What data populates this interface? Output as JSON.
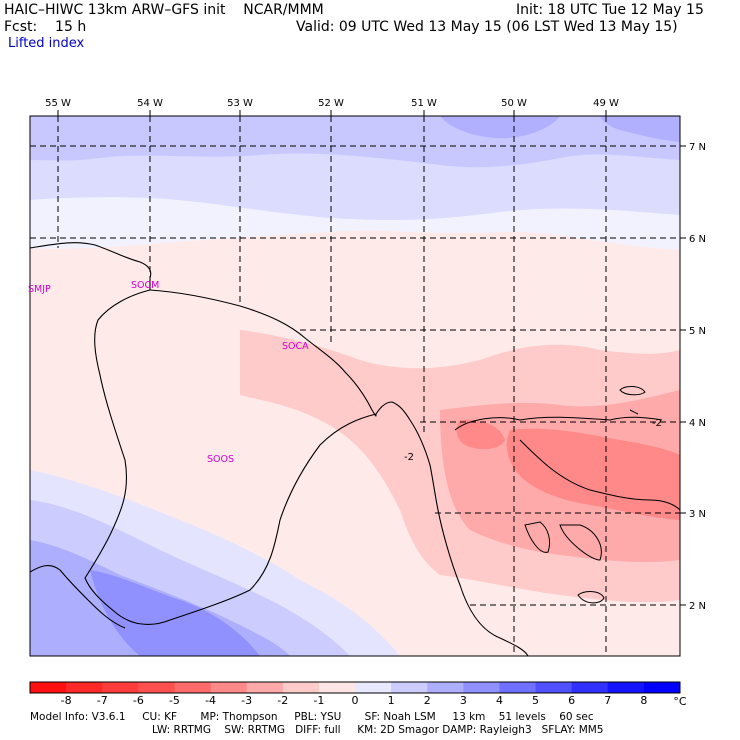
{
  "header": {
    "line1_left": "HAIC–HIWC 13km ARW–GFS init    NCAR/MMM",
    "line1_right": "Init: 18 UTC Tue 12 May 15",
    "line2_left": "Fcst:    15 h",
    "line2_right": "Valid: 09 UTC Wed 13 May 15 (06 LST Wed 13 May 15)",
    "field_name": "Lifted index"
  },
  "map": {
    "lon_labels": [
      "55 W",
      "54 W",
      "53 W",
      "52 W",
      "51 W",
      "50 W",
      "49 W"
    ],
    "lat_labels": [
      "7 N",
      "6 N",
      "5 N",
      "4 N",
      "3 N",
      "2 N"
    ],
    "stations": [
      {
        "id": "SMJP",
        "color": "#d400d4"
      },
      {
        "id": "SOCM",
        "color": "#d400d4"
      },
      {
        "id": "SOCA",
        "color": "#d400d4"
      },
      {
        "id": "SOOS",
        "color": "#d400d4"
      }
    ],
    "contour_labels": [
      "-2",
      "-2"
    ]
  },
  "colorbar": {
    "values": [
      "-8",
      "-7",
      "-6",
      "-5",
      "-4",
      "-3",
      "-2",
      "-1",
      "0",
      "1",
      "2",
      "3",
      "4",
      "5",
      "6",
      "7",
      "8"
    ],
    "unit": "°C",
    "colors": [
      "#ff1010",
      "#ff2828",
      "#ff3c3c",
      "#ff5050",
      "#ff6a6a",
      "#ff8888",
      "#ffaaaa",
      "#ffcaca",
      "#ffe6e6",
      "#e8e8ff",
      "#ccccff",
      "#aeaeff",
      "#9090ff",
      "#7070ff",
      "#5050ff",
      "#3030ff",
      "#1414ff",
      "#0000ff"
    ]
  },
  "footer": {
    "line1": "Model Info: V3.6.1     CU: KF       MP: Thompson     PBL: YSU       SF: Noah LSM     13 km    51 levels    60 sec",
    "line2": "LW: RRTMG    SW: RRTMG   DIFF: full     KM: 2D Smagor DAMP: Rayleigh3   SFLAY: MM5"
  }
}
